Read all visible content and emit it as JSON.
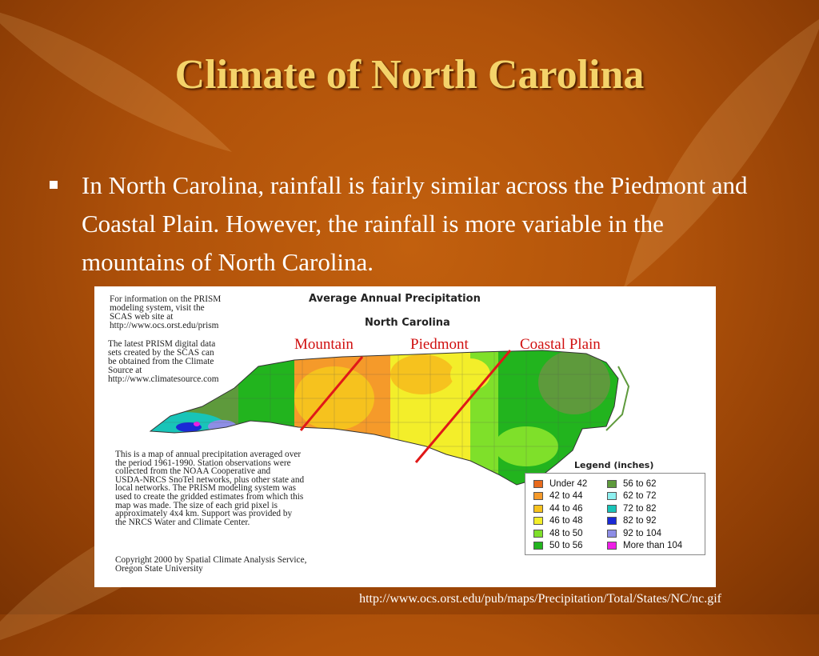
{
  "slide": {
    "title": "Climate of North Carolina",
    "bullet": "In North Carolina, rainfall is fairly similar across the Piedmont and Coastal Plain.  However, the rainfall is more variable in the mountains of North Carolina.",
    "source_url": "http://www.ocs.orst.edu/pub/maps/Precipitation/Total/States/NC/nc.gif"
  },
  "map": {
    "title": "Average Annual Precipitation",
    "subtitle": "North Carolina",
    "info_prism": "For information on the PRISM\nmodeling system, visit the\nSCAS web site at\n http://www.ocs.orst.edu/prism",
    "info_data": "The latest PRISM digital data\nsets created by the SCAS can\nbe obtained from the Climate\nSource at\nhttp://www.climatesource.com",
    "description": "This is a map of annual precipitation averaged over\nthe period 1961-1990. Station observations were\ncollected from the NOAA Cooperative and\nUSDA-NRCS SnoTel networks, plus other state and\nlocal networks.  The PRISM modeling system was\nused to create the gridded estimates from which this\nmap was made.  The size of each grid pixel is\napproximately 4x4 km.  Support was provided by\nthe NRCS Water and Climate Center.",
    "copyright": "Copyright 2000 by Spatial Climate Analysis Service,\nOregon State University",
    "regions": [
      "Mountain",
      "Piedmont",
      "Coastal Plain"
    ],
    "region_line_color": "#e01818",
    "legend": {
      "title": "Legend (inches)",
      "left": [
        {
          "label": "Under 42",
          "color": "#e86a1c"
        },
        {
          "label": "42 to 44",
          "color": "#f59a2a"
        },
        {
          "label": "44 to 46",
          "color": "#f6c21e"
        },
        {
          "label": "46 to 48",
          "color": "#f3ee2a"
        },
        {
          "label": "48 to 50",
          "color": "#7fe02a"
        },
        {
          "label": "50 to 56",
          "color": "#22b41e"
        }
      ],
      "right": [
        {
          "label": "56 to 62",
          "color": "#5e9a3c"
        },
        {
          "label": "62 to 72",
          "color": "#8ef0f0"
        },
        {
          "label": "72 to 82",
          "color": "#18c4b8"
        },
        {
          "label": "82 to 92",
          "color": "#1a2ad6"
        },
        {
          "label": "92 to 104",
          "color": "#8e8ee6"
        },
        {
          "label": "More than 104",
          "color": "#ee1ee6"
        }
      ]
    }
  }
}
